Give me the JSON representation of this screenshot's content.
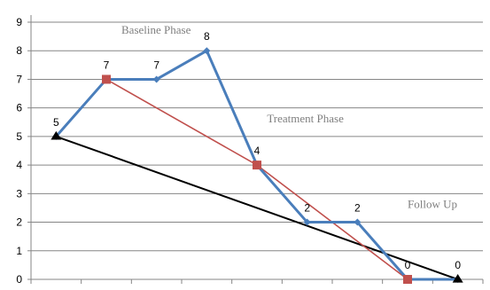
{
  "chart_data": {
    "type": "line",
    "x": [
      1,
      2,
      3,
      4,
      5,
      6,
      7,
      8,
      9
    ],
    "ylim": [
      0,
      9
    ],
    "yticks": [
      "0",
      "1",
      "2",
      "3",
      "4",
      "5",
      "6",
      "7",
      "8",
      "9"
    ],
    "grid": true,
    "series": [
      {
        "values": [
          5,
          7,
          7,
          8,
          4,
          2,
          2,
          0,
          0
        ],
        "color": "#4a7ebb",
        "marker": "diamond",
        "data_labels": [
          "5",
          "7",
          "7",
          "8",
          "4",
          "2",
          "2",
          "0",
          "0"
        ]
      },
      {
        "x": [
          2,
          5,
          8
        ],
        "values": [
          7,
          4,
          0
        ],
        "color": "#c0504d",
        "marker": "square"
      },
      {
        "x": [
          1,
          9
        ],
        "values": [
          5,
          0
        ],
        "color": "#000000",
        "marker": "triangle"
      }
    ],
    "annotations": [
      {
        "text": "Baseline Phase",
        "x": 2.3,
        "y": 8.6
      },
      {
        "text": "Treatment Phase",
        "x": 5.2,
        "y": 5.5
      },
      {
        "text": "Follow Up",
        "x": 8.0,
        "y": 2.5
      }
    ]
  }
}
